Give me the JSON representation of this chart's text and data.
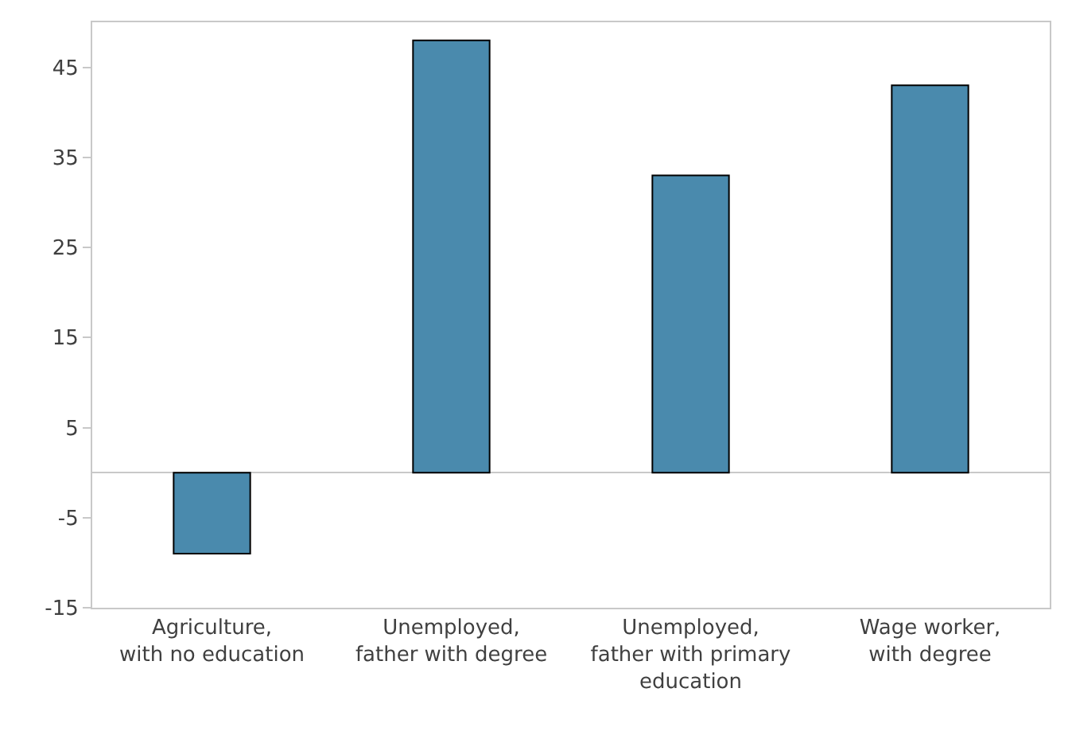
{
  "chart_data": {
    "type": "bar",
    "categories": [
      "Agriculture,\nwith no education",
      "Unemployed,\nfather with degree",
      "Unemployed,\nfather with primary\neducation",
      "Wage worker,\nwith degree"
    ],
    "values": [
      -9,
      48,
      33,
      43
    ],
    "color": "#4a8aad",
    "ylim": [
      -15,
      50
    ],
    "yticks": [
      -15,
      -5,
      5,
      15,
      25,
      35,
      45
    ],
    "grid": false
  }
}
